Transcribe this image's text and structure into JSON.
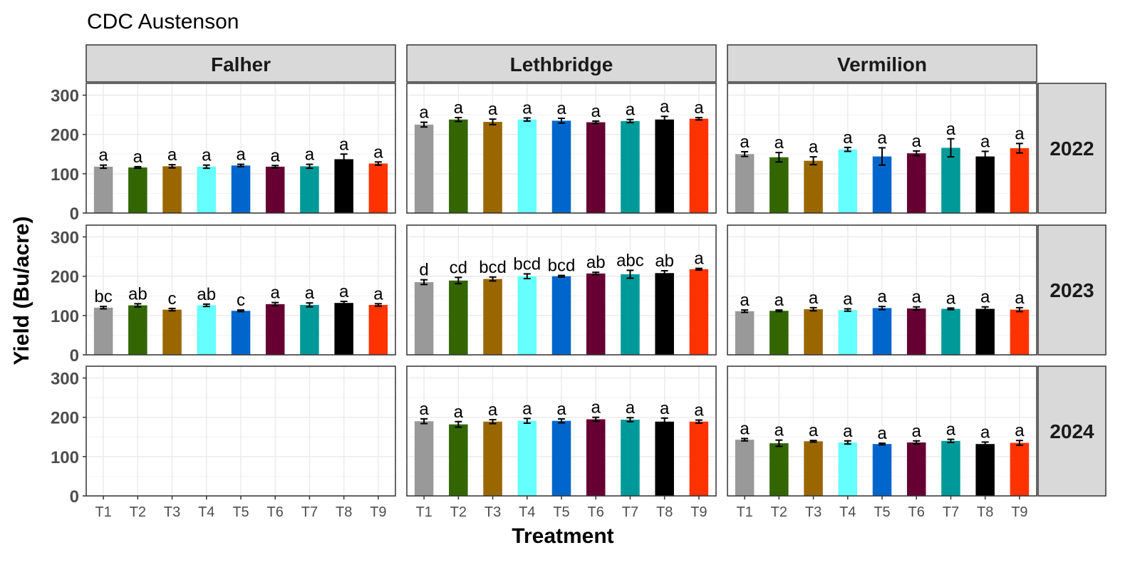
{
  "chart_data": {
    "type": "bar",
    "title": "CDC Austenson",
    "xlabel": "Treatment",
    "ylabel": "Yield (Bu/acre)",
    "ylim": [
      0,
      330
    ],
    "yticks": [
      0,
      100,
      200,
      300
    ],
    "grid": true,
    "categories": [
      "T1",
      "T2",
      "T3",
      "T4",
      "T5",
      "T6",
      "T7",
      "T8",
      "T9"
    ],
    "colors": [
      "#999999",
      "#336600",
      "#996600",
      "#66FFFF",
      "#0066CC",
      "#660033",
      "#009999",
      "#000000",
      "#FF3300"
    ],
    "columns": [
      "Falher",
      "Lethbridge",
      "Vermilion"
    ],
    "rows": [
      "2022",
      "2023",
      "2024"
    ],
    "panels": [
      {
        "location": "Falher",
        "year": "2022",
        "values": [
          118,
          116,
          119,
          118,
          121,
          118,
          119,
          137,
          126
        ],
        "errors": [
          4,
          2,
          4,
          4,
          3,
          3,
          5,
          13,
          4
        ],
        "letters": [
          "a",
          "a",
          "a",
          "a",
          "a",
          "a",
          "a",
          "a",
          "a"
        ]
      },
      {
        "location": "Lethbridge",
        "year": "2022",
        "values": [
          225,
          238,
          232,
          238,
          235,
          231,
          234,
          238,
          240
        ],
        "errors": [
          6,
          5,
          7,
          4,
          6,
          3,
          4,
          8,
          3
        ],
        "letters": [
          "a",
          "a",
          "a",
          "a",
          "a",
          "a",
          "a",
          "a",
          "a"
        ]
      },
      {
        "location": "Vermilion",
        "year": "2022",
        "values": [
          150,
          142,
          133,
          162,
          144,
          152,
          166,
          144,
          165
        ],
        "errors": [
          6,
          12,
          10,
          5,
          22,
          6,
          23,
          13,
          12
        ],
        "letters": [
          "a",
          "a",
          "a",
          "a",
          "a",
          "a",
          "a",
          "a",
          "a"
        ]
      },
      {
        "location": "Falher",
        "year": "2023",
        "values": [
          120,
          126,
          115,
          126,
          112,
          129,
          127,
          132,
          127
        ],
        "errors": [
          3,
          4,
          3,
          3,
          2,
          4,
          5,
          4,
          3
        ],
        "letters": [
          "bc",
          "ab",
          "c",
          "ab",
          "c",
          "a",
          "a",
          "a",
          "a"
        ]
      },
      {
        "location": "Lethbridge",
        "year": "2023",
        "values": [
          185,
          189,
          193,
          200,
          200,
          207,
          205,
          208,
          218
        ],
        "errors": [
          6,
          8,
          5,
          6,
          2,
          3,
          10,
          6,
          2
        ],
        "letters": [
          "d",
          "cd",
          "bcd",
          "bcd",
          "bcd",
          "ab",
          "abc",
          "ab",
          "a"
        ]
      },
      {
        "location": "Vermilion",
        "year": "2023",
        "values": [
          111,
          112,
          116,
          114,
          119,
          118,
          117,
          117,
          115
        ],
        "errors": [
          3,
          2,
          4,
          3,
          4,
          4,
          2,
          5,
          5
        ],
        "letters": [
          "a",
          "a",
          "a",
          "a",
          "a",
          "a",
          "a",
          "a",
          "a"
        ]
      },
      {
        "location": "Falher",
        "year": "2024",
        "values": [],
        "errors": [],
        "letters": []
      },
      {
        "location": "Lethbridge",
        "year": "2024",
        "values": [
          190,
          182,
          189,
          191,
          191,
          195,
          194,
          189,
          189
        ],
        "errors": [
          6,
          7,
          5,
          6,
          5,
          5,
          5,
          9,
          4
        ],
        "letters": [
          "a",
          "a",
          "a",
          "a",
          "a",
          "a",
          "a",
          "a",
          "a"
        ]
      },
      {
        "location": "Vermilion",
        "year": "2024",
        "values": [
          143,
          134,
          139,
          136,
          132,
          136,
          140,
          132,
          135
        ],
        "errors": [
          3,
          8,
          2,
          4,
          2,
          4,
          4,
          5,
          6
        ],
        "letters": [
          "a",
          "a",
          "a",
          "a",
          "a",
          "a",
          "a",
          "a",
          "a"
        ]
      }
    ]
  }
}
